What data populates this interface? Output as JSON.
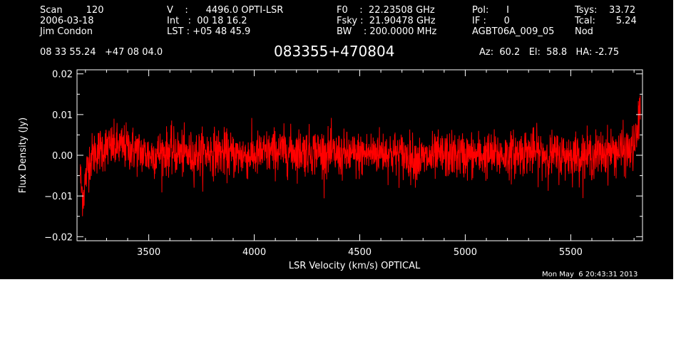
{
  "header": {
    "col1": [
      "Scan        120",
      "2006-03-18",
      "Jim Condon"
    ],
    "col2": [
      "V    :      4496.0 OPTI-LSR",
      "Int   :  00 18 16.2",
      "LST : +05 48 45.9"
    ],
    "col3": [
      "F0    :  22.23508 GHz",
      "Fsky :  21.90478 GHz",
      "BW    : 200.0000 MHz"
    ],
    "col4": [
      "Pol:      I",
      "IF :      0",
      "AGBT06A_009_05"
    ],
    "col5": [
      "Tsys:    33.72",
      "Tcal:       5.24",
      "Nod"
    ]
  },
  "coords": "08 33 55.24   +47 08 04.0",
  "source_title": "083355+470804",
  "pointing": "Az:  60.2   El:  58.8   HA: -2.75",
  "timestamp": "Mon May  6 20:43:31 2013",
  "colors": {
    "background": "#000000",
    "spectrum": "#ff0000",
    "axes": "#ffffff"
  },
  "chart_data": {
    "type": "line",
    "title": "083355+470804",
    "xlabel": "LSR Velocity (km/s) OPTICAL",
    "ylabel": "Flux Density (Jy)",
    "xlim": [
      3160,
      5840
    ],
    "ylim": [
      -0.021,
      0.021
    ],
    "x_ticks": [
      3500,
      4000,
      4500,
      5000,
      5500
    ],
    "x_tick_labels": [
      "3500",
      "4000",
      "4500",
      "5000",
      "5500"
    ],
    "y_ticks": [
      -0.02,
      -0.01,
      0.0,
      0.01,
      0.02
    ],
    "y_tick_labels": [
      "−0.02",
      "−0.01",
      "0.00",
      "0.01",
      "0.02"
    ],
    "grid": false,
    "series": [
      {
        "color": "#ff0000",
        "x_range": [
          3175,
          5830
        ],
        "noise_rms": 0.0028,
        "mean": 0.0,
        "x": [
          3175,
          3180,
          3190,
          3200,
          3210,
          3220,
          3250,
          3300,
          3400,
          3500,
          3600,
          3700,
          3800,
          3900,
          4000,
          4100,
          4200,
          4300,
          4400,
          4500,
          4600,
          4700,
          4800,
          4900,
          5000,
          5100,
          5200,
          5300,
          5400,
          5500,
          5600,
          5700,
          5780,
          5800,
          5810,
          5820,
          5825,
          5830
        ],
        "y": [
          -0.004,
          -0.008,
          -0.01,
          -0.006,
          -0.003,
          -0.001,
          0.001,
          0.002,
          0.002,
          0.0,
          0.001,
          0.0,
          0.001,
          0.0,
          0.0,
          0.001,
          0.001,
          0.001,
          0.0,
          0.0,
          0.001,
          0.0,
          -0.001,
          0.0,
          0.0,
          0.0,
          0.0,
          0.001,
          0.0,
          0.0,
          0.0,
          0.001,
          0.001,
          0.002,
          0.004,
          0.007,
          0.01,
          0.013
        ]
      }
    ]
  }
}
